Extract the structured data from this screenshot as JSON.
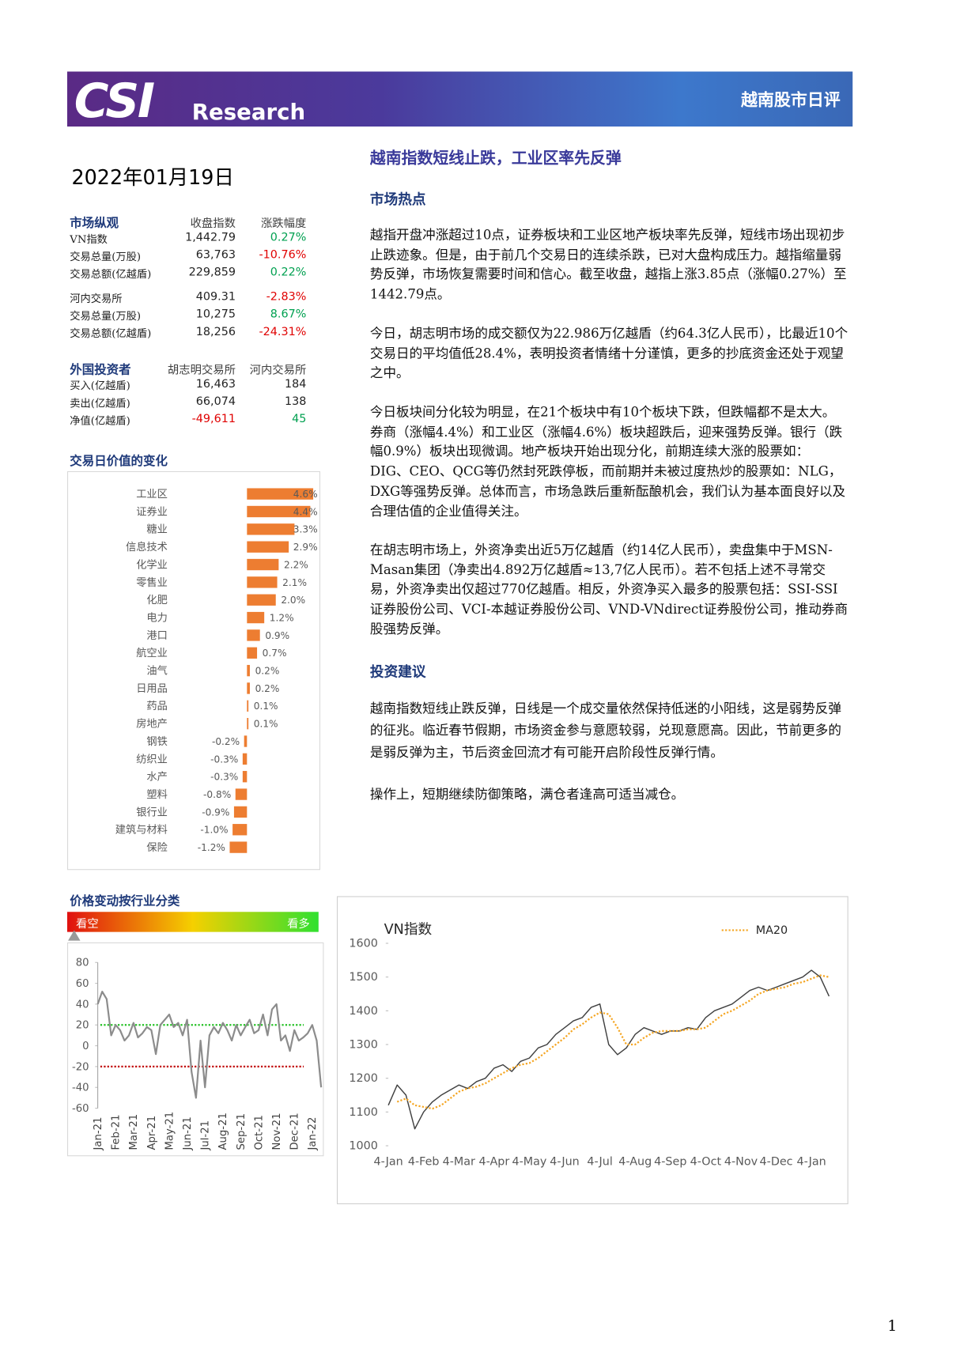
{
  "header": {
    "logo": "CSI",
    "sub": "Research",
    "title": "越南股市日评"
  },
  "date": "2022年01月19日",
  "headline": "越南指数短线止跌，工业区率先反弹",
  "sections": [
    "市场热点",
    "投资建议"
  ],
  "paragraphs": [
    "越指开盘冲涨超过10点，证券板块和工业区地产板块率先反弹，短线市场出现初步止跌迹象。但是，由于前几个交易日的连续杀跌，已对大盘构成压力。越指缩量弱势反弹，市场恢复需要时间和信心。截至收盘，越指上涨3.85点（涨幅0.27%）至1442.79点。",
    "今日，胡志明市场的成交额仅为22.986万亿越盾（约64.3亿人民币），比最近10个交易日的平均值低28.4%，表明投资者情绪十分谨慎，更多的抄底资金还处于观望之中。",
    "今日板块间分化较为明显，在21个板块中有10个板块下跌，但跌幅都不是太大。券商（涨幅4.4%）和工业区（涨幅4.6%）板块超跌后，迎来强势反弹。银行（跌幅0.9%）板块出现微调。地产板块开始出现分化，前期连续大涨的股票如：DIG、CEO、QCG等仍然封死跌停板，而前期并未被过度热炒的股票如：NLG，DXG等强势反弹。总体而言，市场急跌后重新酝酿机会，我们认为基本面良好以及合理估值的企业值得关注。",
    "在胡志明市场上，外资净卖出近5万亿越盾（约14亿人民币），卖盘集中于MSN-Masan集团（净卖出4.892万亿越盾≈13,7亿人民币）。若不包括上述不寻常交易，外资净卖出仅超过770亿越盾。相反，外资净买入最多的股票包括：SSI-SSI证券股份公司、VCI-本越证券股份公司、VND-VNdirect证券股份公司，推动券商股强势反弹。",
    "越南指数短线止跌反弹，日线是一个成交量依然保持低迷的小阳线，这是弱势反弹的征兆。临近春节假期，市场资金参与意愿较弱，兑现意愿高。因此，节前更多的是弱反弹为主，节后资金回流才有可能开启阶段性反弹行情。",
    "操作上，短期继续防御策略，满仓者逢高可适当减仓。"
  ],
  "market": {
    "header": [
      "市场纵观",
      "收盘指数",
      "涨跌幅度"
    ],
    "hose_rows": [
      [
        "VN指数",
        "1,442.79",
        "0.27%"
      ],
      [
        "交易总量(万股)",
        "63,763",
        "-10.76%"
      ],
      [
        "交易总额(亿越盾)",
        "229,859",
        "0.22%"
      ]
    ],
    "hnx_rows": [
      [
        "河内交易所",
        "409.31",
        "-2.83%"
      ],
      [
        "交易总量(万股)",
        "10,275",
        "8.67%"
      ],
      [
        "交易总额(亿越盾)",
        "18,256",
        "-24.31%"
      ]
    ]
  },
  "foreign": {
    "header": [
      "外国投资者",
      "胡志明交易所",
      "河内交易所"
    ],
    "rows": [
      [
        "买入(亿越盾)",
        "16,463",
        "184"
      ],
      [
        "卖出(亿越盾)",
        "66,074",
        "138"
      ],
      [
        "净值(亿越盾)",
        "-49,611",
        "45"
      ]
    ]
  },
  "page_number": "1",
  "chart_data": [
    {
      "type": "hbar",
      "title": "交易日价值的变化",
      "color": "#ed7d31",
      "categories": [
        "工业区",
        "证券业",
        "糖业",
        "信息技术",
        "化学业",
        "零售业",
        "化肥",
        "电力",
        "港口",
        "航空业",
        "油气",
        "日用品",
        "药品",
        "房地产",
        "钢铁",
        "纺织业",
        "水产",
        "塑料",
        "银行业",
        "建筑与材料",
        "保险"
      ],
      "values": [
        4.6,
        4.4,
        3.3,
        2.9,
        2.2,
        2.1,
        2.0,
        1.2,
        0.9,
        0.7,
        0.2,
        0.2,
        0.1,
        0.1,
        -0.2,
        -0.3,
        -0.3,
        -0.8,
        -0.9,
        -1.0,
        -1.2
      ],
      "value_labels": [
        "4.6%",
        "4.4%",
        "3.3%",
        "2.9%",
        "2.2%",
        "2.1%",
        "2.0%",
        "1.2%",
        "0.9%",
        "0.7%",
        "0.2%",
        "0.2%",
        "0.1%",
        "0.1%",
        "-0.2%",
        "-0.3%",
        "-0.3%",
        "-0.8%",
        "-0.9%",
        "-1.0%",
        "-1.2%"
      ]
    },
    {
      "type": "line",
      "title": "价格变动按行业分类",
      "annotations": [
        "看空",
        "看多"
      ],
      "color": "#8c8c8c",
      "categories": [
        "Jan-21",
        null,
        null,
        null,
        "Feb-21",
        null,
        null,
        null,
        "Mar-21",
        null,
        null,
        null,
        "Apr-21",
        null,
        null,
        null,
        "May-21",
        null,
        null,
        null,
        "Jun-21",
        null,
        null,
        null,
        "Jul-21",
        null,
        null,
        null,
        "Aug-21",
        null,
        null,
        null,
        "Sep-21",
        null,
        null,
        null,
        "Oct-21",
        null,
        null,
        null,
        "Nov-21",
        null,
        null,
        null,
        "Dec-21",
        null,
        null,
        null,
        "Jan-22",
        null,
        null
      ],
      "values": [
        40,
        52,
        45,
        10,
        20,
        15,
        5,
        10,
        22,
        8,
        12,
        18,
        15,
        -8,
        20,
        25,
        30,
        18,
        22,
        10,
        25,
        -25,
        -50,
        5,
        -40,
        10,
        18,
        12,
        22,
        15,
        5,
        20,
        10,
        18,
        25,
        12,
        15,
        30,
        10,
        35,
        40,
        5,
        10,
        -5,
        15,
        5,
        8,
        12,
        20,
        5,
        -40
      ],
      "ref_lines": [
        {
          "value": 20,
          "color": "#22c022"
        },
        {
          "value": -20,
          "color": "#c00000"
        }
      ],
      "ylim": [
        -60,
        80
      ],
      "yticks": [
        -60,
        -40,
        -20,
        0,
        20,
        40,
        60,
        80
      ]
    },
    {
      "type": "line",
      "title": "VN指数",
      "categories": [
        "4-Jan",
        null,
        null,
        null,
        "4-Feb",
        null,
        null,
        null,
        "4-Mar",
        null,
        null,
        null,
        "4-Apr",
        null,
        null,
        null,
        "4-May",
        null,
        null,
        null,
        "4-Jun",
        null,
        null,
        null,
        "4-Jul",
        null,
        null,
        null,
        "4-Aug",
        null,
        null,
        null,
        "4-Sep",
        null,
        null,
        null,
        "4-Oct",
        null,
        null,
        null,
        "4-Nov",
        null,
        null,
        null,
        "4-Dec",
        null,
        null,
        null,
        "4-Jan",
        null,
        null
      ],
      "series": [
        {
          "color": "#404040",
          "values": [
            1120,
            1180,
            1150,
            1050,
            1100,
            1130,
            1150,
            1165,
            1180,
            1170,
            1190,
            1200,
            1230,
            1240,
            1220,
            1250,
            1260,
            1290,
            1300,
            1330,
            1350,
            1370,
            1380,
            1410,
            1420,
            1300,
            1270,
            1290,
            1330,
            1350,
            1340,
            1330,
            1340,
            1340,
            1350,
            1345,
            1380,
            1400,
            1410,
            1420,
            1440,
            1460,
            1470,
            1460,
            1470,
            1480,
            1490,
            1500,
            1520,
            1500,
            1443
          ]
        },
        {
          "name": "MA20",
          "color": "#f5a623",
          "values": [
            null,
            1130,
            1140,
            1120,
            1115,
            1110,
            1120,
            1140,
            1160,
            1170,
            1175,
            1185,
            1200,
            1215,
            1230,
            1240,
            1245,
            1260,
            1280,
            1300,
            1320,
            1345,
            1360,
            1380,
            1395,
            1390,
            1350,
            1300,
            1300,
            1320,
            1335,
            1340,
            1340,
            1340,
            1345,
            1345,
            1350,
            1370,
            1390,
            1400,
            1415,
            1430,
            1450,
            1460,
            1465,
            1470,
            1480,
            1485,
            1495,
            1505,
            1500
          ]
        }
      ],
      "ylim": [
        1000,
        1600
      ],
      "yticks": [
        1000,
        1100,
        1200,
        1300,
        1400,
        1500,
        1600
      ]
    }
  ]
}
